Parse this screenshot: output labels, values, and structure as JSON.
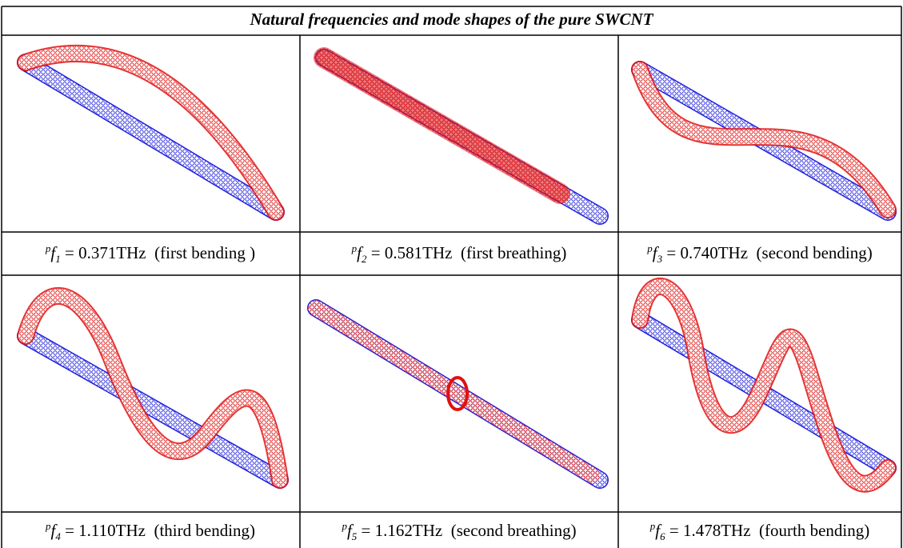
{
  "header": {
    "title": "Natural frequencies and mode shapes of the pure SWCNT"
  },
  "table": {
    "rows": [
      [
        {
          "superscript": "p",
          "symbol": "f",
          "subscript": "1",
          "relation": "=",
          "value": "0.371",
          "unit": "THz",
          "mode": "(first bending )"
        },
        {
          "superscript": "p",
          "symbol": "f",
          "subscript": "2",
          "relation": "=",
          "value": "0.581",
          "unit": "THz",
          "mode": "(first breathing)"
        },
        {
          "superscript": "p",
          "symbol": "f",
          "subscript": "3",
          "relation": "=",
          "value": "0.740",
          "unit": "THz",
          "mode": "(second bending)"
        }
      ],
      [
        {
          "superscript": "p",
          "symbol": "f",
          "subscript": "4",
          "relation": "=",
          "value": "1.110",
          "unit": "THz",
          "mode": "(third bending)"
        },
        {
          "superscript": "p",
          "symbol": "f",
          "subscript": "5",
          "relation": "=",
          "value": "1.162",
          "unit": "THz",
          "mode": "(second breathing)"
        },
        {
          "superscript": "p",
          "symbol": "f",
          "subscript": "6",
          "relation": "=",
          "value": "1.478",
          "unit": "THz",
          "mode": "(fourth bending)"
        }
      ]
    ]
  }
}
